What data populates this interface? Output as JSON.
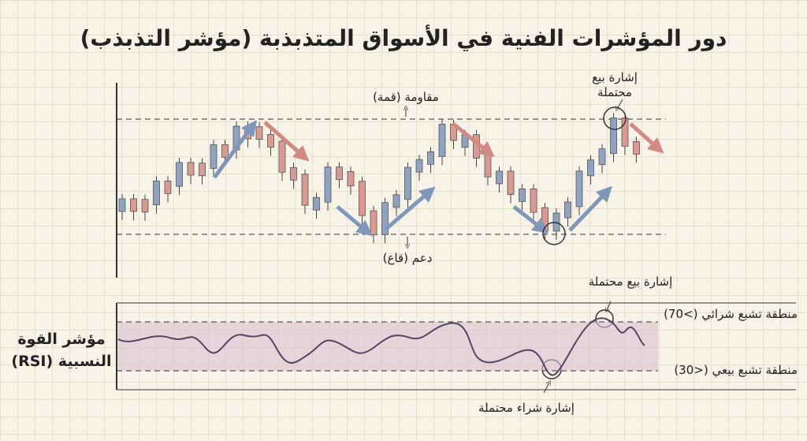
{
  "title": "دور المؤشرات الفنية في الأسواق المتذبذبة (مؤشر التذبذب)",
  "price_panel": {
    "resistance_label": "مقاومة (قمة)",
    "support_label": "دعم (قاع)",
    "sell_signal": [
      "إشارة بيع",
      "محتملة"
    ]
  },
  "rsi_panel": {
    "label": [
      "مؤشر القوة",
      "النسبية (RSI)"
    ],
    "sell_signal": "إشارة بيع محتملة",
    "overbought": "منطقة تشبع شرائي (>70)",
    "oversold": "منطقة تشبع بيعي (<30)",
    "buy_signal": "إشارة شراء محتملة"
  }
}
